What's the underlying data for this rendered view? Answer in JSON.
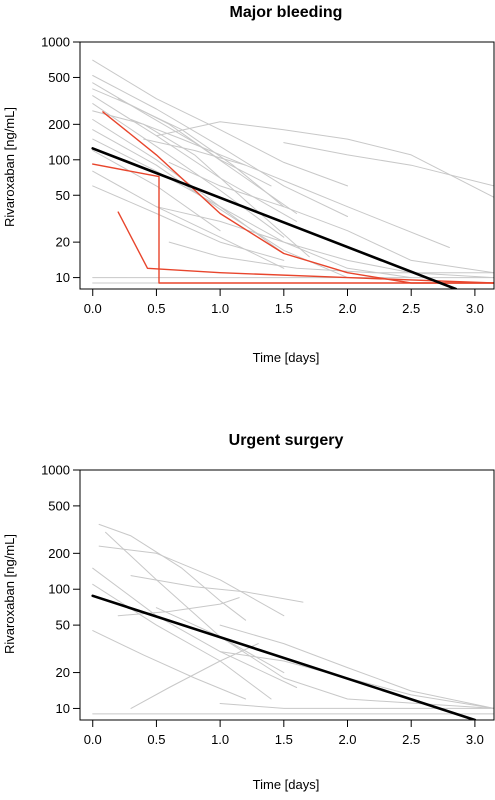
{
  "chart_data": [
    {
      "type": "line",
      "title": "Major bleeding",
      "xlabel": "Time [days]",
      "ylabel": "Rivaroxaban [ng/mL]",
      "xlim": [
        -0.1,
        3.15
      ],
      "ylim": [
        8,
        1000
      ],
      "yscale": "log",
      "xticks": [
        "0.0",
        "0.5",
        "1.0",
        "1.5",
        "2.0",
        "2.5",
        "3.0"
      ],
      "yticks": [
        "10",
        "20",
        "50",
        "100",
        "200",
        "500",
        "1000"
      ],
      "grid": false,
      "colors": {
        "individual": "#c8c8c8",
        "highlighted": "#e8452c",
        "model": "#000000"
      },
      "series": [
        {
          "group": "individual",
          "x": [
            0.0,
            0.5,
            1.0,
            1.5,
            2.0
          ],
          "y": [
            700,
            330,
            180,
            95,
            60
          ]
        },
        {
          "group": "individual",
          "x": [
            0.0,
            0.5,
            1.0,
            1.5,
            2.0
          ],
          "y": [
            520,
            270,
            130,
            60,
            33
          ]
        },
        {
          "group": "individual",
          "x": [
            0.0,
            0.4,
            0.8,
            1.2,
            1.6
          ],
          "y": [
            450,
            250,
            140,
            70,
            35
          ]
        },
        {
          "group": "individual",
          "x": [
            0.0,
            0.3,
            0.7,
            1.1,
            1.5
          ],
          "y": [
            400,
            290,
            180,
            90,
            40
          ]
        },
        {
          "group": "individual",
          "x": [
            0.0,
            0.5,
            1.0,
            1.6
          ],
          "y": [
            350,
            160,
            70,
            30
          ]
        },
        {
          "group": "individual",
          "x": [
            0.0,
            0.5,
            1.0,
            1.5
          ],
          "y": [
            300,
            130,
            55,
            22
          ]
        },
        {
          "group": "individual",
          "x": [
            0.0,
            0.4,
            0.8,
            1.2,
            1.7
          ],
          "y": [
            260,
            200,
            110,
            45,
            15
          ]
        },
        {
          "group": "individual",
          "x": [
            0.0,
            0.5,
            1.0,
            1.5
          ],
          "y": [
            220,
            100,
            40,
            16
          ]
        },
        {
          "group": "individual",
          "x": [
            0.0,
            0.5,
            1.0,
            1.5,
            2.0
          ],
          "y": [
            180,
            90,
            38,
            17,
            10
          ]
        },
        {
          "group": "individual",
          "x": [
            0.0,
            0.5,
            1.0,
            1.5,
            2.0,
            2.5
          ],
          "y": [
            150,
            80,
            40,
            20,
            12,
            10
          ]
        },
        {
          "group": "individual",
          "x": [
            0.0,
            0.5,
            1.0
          ],
          "y": [
            120,
            60,
            25
          ]
        },
        {
          "group": "individual",
          "x": [
            0.0,
            0.5,
            1.0,
            1.5
          ],
          "y": [
            80,
            40,
            22,
            12
          ]
        },
        {
          "group": "individual",
          "x": [
            0.0,
            0.5,
            1.0,
            1.5
          ],
          "y": [
            60,
            35,
            20,
            14
          ]
        },
        {
          "group": "individual",
          "x": [
            0.5,
            1.0,
            1.5,
            2.0,
            2.5,
            3.15
          ],
          "y": [
            160,
            210,
            180,
            150,
            110,
            48
          ]
        },
        {
          "group": "individual",
          "x": [
            0.4,
            0.8,
            1.2,
            1.6,
            2.0,
            2.8
          ],
          "y": [
            150,
            120,
            90,
            60,
            40,
            18
          ]
        },
        {
          "group": "individual",
          "x": [
            1.5,
            2.0,
            2.5,
            3.15
          ],
          "y": [
            140,
            110,
            90,
            60
          ]
        },
        {
          "group": "individual",
          "x": [
            0.6,
            1.0,
            1.5,
            2.0,
            2.5,
            3.15
          ],
          "y": [
            95,
            60,
            40,
            25,
            14,
            11
          ]
        },
        {
          "group": "individual",
          "x": [
            0.5,
            1.0,
            1.5,
            2.0,
            2.5,
            3.15
          ],
          "y": [
            40,
            30,
            20,
            14,
            11,
            10
          ]
        },
        {
          "group": "individual",
          "x": [
            0.6,
            1.0,
            1.6,
            2.2,
            2.8,
            3.15
          ],
          "y": [
            20,
            15,
            12,
            11,
            11,
            11
          ]
        },
        {
          "group": "individual",
          "x": [
            0.0,
            0.5,
            1.5,
            2.5,
            3.15
          ],
          "y": [
            10,
            10,
            10,
            10,
            10
          ]
        },
        {
          "group": "individual",
          "x": [
            0.0,
            1.0,
            2.0,
            3.15
          ],
          "y": [
            9,
            9,
            9,
            9
          ]
        },
        {
          "group": "individual",
          "x": [
            0.3,
            0.7,
            1.2
          ],
          "y": [
            220,
            150,
            90
          ]
        },
        {
          "group": "individual",
          "x": [
            0.2,
            0.6,
            1.0,
            1.4
          ],
          "y": [
            330,
            200,
            100,
            60
          ]
        },
        {
          "group": "highlighted",
          "x": [
            0.08,
            0.5,
            1.0,
            1.5,
            2.0,
            2.5,
            3.15
          ],
          "y": [
            255,
            110,
            35,
            16,
            11,
            9,
            9
          ]
        },
        {
          "group": "highlighted",
          "x": [
            0.0,
            0.52,
            0.52,
            1.0,
            2.0,
            3.15
          ],
          "y": [
            92,
            72,
            9,
            9,
            9,
            9
          ]
        },
        {
          "group": "highlighted",
          "x": [
            0.2,
            0.43,
            1.0,
            2.0,
            3.15
          ],
          "y": [
            36,
            12,
            11,
            10,
            9
          ]
        },
        {
          "group": "model",
          "x": [
            0.0,
            2.85
          ],
          "y": [
            125,
            8
          ]
        }
      ]
    },
    {
      "type": "line",
      "title": "Urgent surgery",
      "xlabel": "Time [days]",
      "ylabel": "Rivaroxaban [ng/mL]",
      "xlim": [
        -0.1,
        3.15
      ],
      "ylim": [
        8,
        1000
      ],
      "yscale": "log",
      "xticks": [
        "0.0",
        "0.5",
        "1.0",
        "1.5",
        "2.0",
        "2.5",
        "3.0"
      ],
      "yticks": [
        "10",
        "20",
        "50",
        "100",
        "200",
        "500",
        "1000"
      ],
      "grid": false,
      "colors": {
        "individual": "#c8c8c8",
        "model": "#000000"
      },
      "series": [
        {
          "group": "individual",
          "x": [
            0.05,
            0.3,
            0.7,
            1.0,
            1.2
          ],
          "y": [
            350,
            280,
            150,
            80,
            55
          ]
        },
        {
          "group": "individual",
          "x": [
            0.05,
            0.5,
            1.0,
            1.5
          ],
          "y": [
            230,
            200,
            120,
            60
          ]
        },
        {
          "group": "individual",
          "x": [
            0.1,
            0.5,
            1.0,
            1.5
          ],
          "y": [
            300,
            120,
            40,
            20
          ]
        },
        {
          "group": "individual",
          "x": [
            0.0,
            0.5,
            1.0,
            1.6
          ],
          "y": [
            150,
            60,
            30,
            15
          ]
        },
        {
          "group": "individual",
          "x": [
            0.0,
            0.5,
            1.0,
            1.4
          ],
          "y": [
            110,
            50,
            25,
            12
          ]
        },
        {
          "group": "individual",
          "x": [
            0.0,
            0.4,
            0.8,
            1.2
          ],
          "y": [
            45,
            28,
            18,
            12
          ]
        },
        {
          "group": "individual",
          "x": [
            0.3,
            0.8,
            1.2,
            1.65
          ],
          "y": [
            130,
            105,
            95,
            78
          ]
        },
        {
          "group": "individual",
          "x": [
            0.2,
            0.6,
            1.0,
            1.15
          ],
          "y": [
            60,
            65,
            75,
            85
          ]
        },
        {
          "group": "individual",
          "x": [
            0.3,
            0.6,
            1.0,
            1.3
          ],
          "y": [
            10,
            15,
            25,
            35
          ]
        },
        {
          "group": "individual",
          "x": [
            1.0,
            1.5,
            2.0,
            2.5,
            3.15
          ],
          "y": [
            50,
            35,
            22,
            14,
            10
          ]
        },
        {
          "group": "individual",
          "x": [
            1.0,
            1.5,
            2.0,
            2.5,
            3.15
          ],
          "y": [
            30,
            25,
            18,
            13,
            10
          ]
        },
        {
          "group": "individual",
          "x": [
            0.5,
            1.0,
            1.5,
            2.0,
            3.15
          ],
          "y": [
            70,
            40,
            18,
            12,
            10
          ]
        },
        {
          "group": "individual",
          "x": [
            1.0,
            1.5,
            2.0,
            2.5,
            3.15
          ],
          "y": [
            11,
            10,
            10,
            10,
            10
          ]
        },
        {
          "group": "individual",
          "x": [
            0.0,
            0.5,
            1.0,
            1.5,
            2.0,
            2.5,
            3.15
          ],
          "y": [
            9,
            9,
            9,
            9,
            9,
            9,
            9
          ]
        },
        {
          "group": "model",
          "x": [
            0.0,
            3.0
          ],
          "y": [
            88,
            8
          ]
        }
      ]
    }
  ]
}
